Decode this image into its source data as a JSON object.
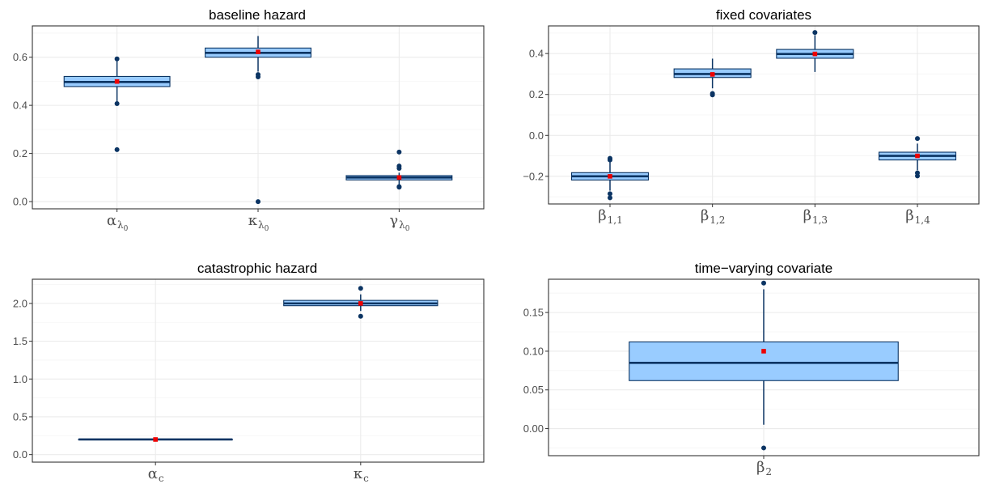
{
  "colors": {
    "box_fill": "#99ccff",
    "box_line": "#0b3463",
    "median": "#0b3463",
    "outlier": "#0b3463",
    "mean": "#ee0000",
    "grid_major": "#ebebeb",
    "grid_minor": "#f5f5f5",
    "panel_border": "#333333",
    "tick_text": "#4d4d4d"
  },
  "chart_data": [
    {
      "type": "box",
      "title": "baseline hazard",
      "ylim": [
        -0.03,
        0.73
      ],
      "yticks": [
        0.0,
        0.2,
        0.4,
        0.6
      ],
      "ytick_labels": [
        "0.0",
        "0.2",
        "0.4",
        "0.6"
      ],
      "grid": true,
      "categories": [
        {
          "sym": "α",
          "sub": "λ",
          "sub2": "0"
        },
        {
          "sym": "κ",
          "sub": "λ",
          "sub2": "0"
        },
        {
          "sym": "γ",
          "sub": "λ",
          "sub2": "0"
        }
      ],
      "boxes": [
        {
          "q1": 0.478,
          "median": 0.497,
          "q3": 0.52,
          "wlo": 0.41,
          "whi": 0.59,
          "mean": 0.499,
          "outliers": [
            0.593,
            0.407,
            0.216
          ]
        },
        {
          "q1": 0.6,
          "median": 0.618,
          "q3": 0.638,
          "wlo": 0.54,
          "whi": 0.688,
          "mean": 0.622,
          "outliers": [
            0.528,
            0.518,
            0.0
          ]
        },
        {
          "q1": 0.09,
          "median": 0.1,
          "q3": 0.108,
          "wlo": 0.07,
          "whi": 0.12,
          "mean": 0.1,
          "outliers": [
            0.206,
            0.148,
            0.138,
            0.062,
            0.06
          ]
        }
      ]
    },
    {
      "type": "box",
      "title": "fixed covariates",
      "ylim": [
        -0.335,
        0.535
      ],
      "yticks": [
        -0.2,
        0.0,
        0.2,
        0.4
      ],
      "ytick_labels": [
        "−0.2",
        "0.0",
        "0.2",
        "0.4"
      ],
      "grid": true,
      "categories": [
        {
          "sym": "β",
          "sub": "1,1"
        },
        {
          "sym": "β",
          "sub": "1,2"
        },
        {
          "sym": "β",
          "sub": "1,3"
        },
        {
          "sym": "β",
          "sub": "1,4"
        }
      ],
      "boxes": [
        {
          "q1": -0.218,
          "median": -0.2,
          "q3": -0.182,
          "wlo": -0.27,
          "whi": -0.13,
          "mean": -0.2,
          "outliers": [
            -0.112,
            -0.12,
            -0.285,
            -0.305
          ]
        },
        {
          "q1": 0.283,
          "median": 0.3,
          "q3": 0.325,
          "wlo": 0.23,
          "whi": 0.375,
          "mean": 0.298,
          "outliers": [
            0.205,
            0.198
          ]
        },
        {
          "q1": 0.377,
          "median": 0.398,
          "q3": 0.42,
          "wlo": 0.31,
          "whi": 0.49,
          "mean": 0.398,
          "outliers": [
            0.503
          ]
        },
        {
          "q1": -0.12,
          "median": -0.1,
          "q3": -0.082,
          "wlo": -0.17,
          "whi": -0.04,
          "mean": -0.1,
          "outliers": [
            -0.015,
            -0.183,
            -0.198
          ]
        }
      ]
    },
    {
      "type": "box",
      "title": "catastrophic hazard",
      "ylim": [
        -0.1,
        2.32
      ],
      "yticks": [
        0.0,
        0.5,
        1.0,
        1.5,
        2.0
      ],
      "ytick_labels": [
        "0.0",
        "0.5",
        "1.0",
        "1.5",
        "2.0"
      ],
      "grid": true,
      "categories": [
        {
          "sym": "α",
          "sub": "c"
        },
        {
          "sym": "κ",
          "sub": "c"
        }
      ],
      "boxes": [
        {
          "q1": 0.2,
          "median": 0.2,
          "q3": 0.2,
          "wlo": 0.2,
          "whi": 0.2,
          "mean": 0.2,
          "outliers": []
        },
        {
          "q1": 1.97,
          "median": 2.0,
          "q3": 2.04,
          "wlo": 1.9,
          "whi": 2.12,
          "mean": 2.0,
          "outliers": [
            2.2,
            1.83
          ]
        }
      ]
    },
    {
      "type": "box",
      "title": "time−varying covariate",
      "ylim": [
        -0.035,
        0.193
      ],
      "yticks": [
        0.0,
        0.05,
        0.1,
        0.15
      ],
      "ytick_labels": [
        "0.00",
        "0.05",
        "0.10",
        "0.15"
      ],
      "grid": true,
      "categories": [
        {
          "sym": "β",
          "sub": "2"
        }
      ],
      "boxes": [
        {
          "q1": 0.062,
          "median": 0.085,
          "q3": 0.112,
          "wlo": 0.005,
          "whi": 0.18,
          "mean": 0.1,
          "outliers": [
            0.188,
            -0.025
          ]
        }
      ]
    }
  ]
}
